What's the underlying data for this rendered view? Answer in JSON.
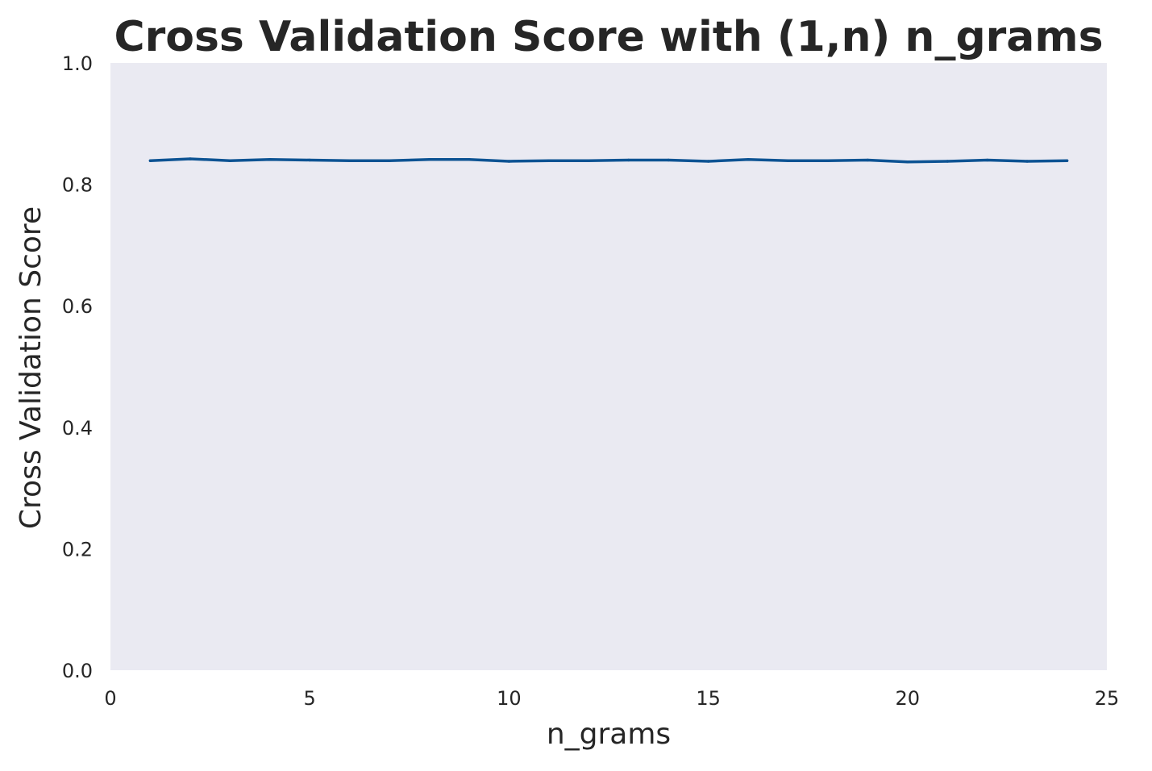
{
  "chart_data": {
    "type": "line",
    "title": "Cross Validation Score with (1,n) n_grams",
    "xlabel": "n_grams",
    "ylabel": "Cross Validation Score",
    "xlim": [
      0,
      25
    ],
    "ylim": [
      0.0,
      1.0
    ],
    "xticks": [
      0,
      5,
      10,
      15,
      20,
      25
    ],
    "xtick_labels": [
      "0",
      "5",
      "10",
      "15",
      "20",
      "25"
    ],
    "yticks": [
      0.0,
      0.2,
      0.4,
      0.6,
      0.8,
      1.0
    ],
    "ytick_labels": [
      "0.0",
      "0.2",
      "0.4",
      "0.6",
      "0.8",
      "1.0"
    ],
    "grid": false,
    "colors": {
      "plot_background": "#eaeaf2",
      "line": "#0d5393",
      "text": "#262626"
    },
    "series": [
      {
        "x": [
          1,
          2,
          3,
          4,
          5,
          6,
          7,
          8,
          9,
          10,
          11,
          12,
          13,
          14,
          15,
          16,
          17,
          18,
          19,
          20,
          21,
          22,
          23,
          24
        ],
        "values": [
          0.839,
          0.842,
          0.839,
          0.841,
          0.84,
          0.839,
          0.839,
          0.841,
          0.841,
          0.838,
          0.839,
          0.839,
          0.84,
          0.84,
          0.838,
          0.841,
          0.839,
          0.839,
          0.84,
          0.837,
          0.838,
          0.84,
          0.838,
          0.839
        ]
      }
    ]
  }
}
